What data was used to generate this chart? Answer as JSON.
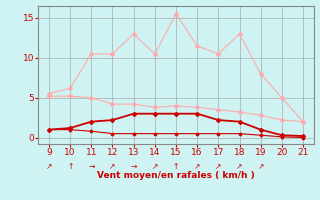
{
  "x": [
    9,
    10,
    11,
    12,
    13,
    14,
    15,
    16,
    17,
    18,
    19,
    20,
    21
  ],
  "line_rafales": [
    5.5,
    6.2,
    10.5,
    10.5,
    13.0,
    10.5,
    15.5,
    11.5,
    10.5,
    13.0,
    8.0,
    5.0,
    2.0
  ],
  "line_max": [
    5.2,
    5.2,
    5.0,
    4.2,
    4.2,
    3.8,
    4.0,
    3.8,
    3.5,
    3.2,
    2.8,
    2.2,
    2.0
  ],
  "line_moy": [
    1.0,
    1.2,
    2.0,
    2.2,
    3.0,
    3.0,
    3.0,
    3.0,
    2.2,
    2.0,
    1.0,
    0.3,
    0.2
  ],
  "line_min": [
    1.0,
    1.0,
    0.8,
    0.5,
    0.5,
    0.5,
    0.5,
    0.5,
    0.5,
    0.5,
    0.3,
    0.1,
    0.0
  ],
  "color_rafales": "#ffaaaa",
  "color_max": "#ffaaaa",
  "color_moy": "#cc0000",
  "color_min": "#cc0000",
  "bg_color": "#cff2f2",
  "grid_color": "#aaaaaa",
  "spine_color": "#888888",
  "axis_color": "#cc0000",
  "xlabel": "Vent moyen/en rafales ( km/h )",
  "ylabel_ticks": [
    0,
    5,
    10,
    15
  ],
  "xlim": [
    8.5,
    21.5
  ],
  "ylim": [
    -0.8,
    16.5
  ],
  "xticks": [
    9,
    10,
    11,
    12,
    13,
    14,
    15,
    16,
    17,
    18,
    19,
    20,
    21
  ],
  "arrow_symbols": [
    "↗",
    "↑",
    "→",
    "↗",
    "→",
    "↗",
    "↑",
    "↗",
    "↗",
    "↗",
    "↗",
    null,
    null
  ]
}
